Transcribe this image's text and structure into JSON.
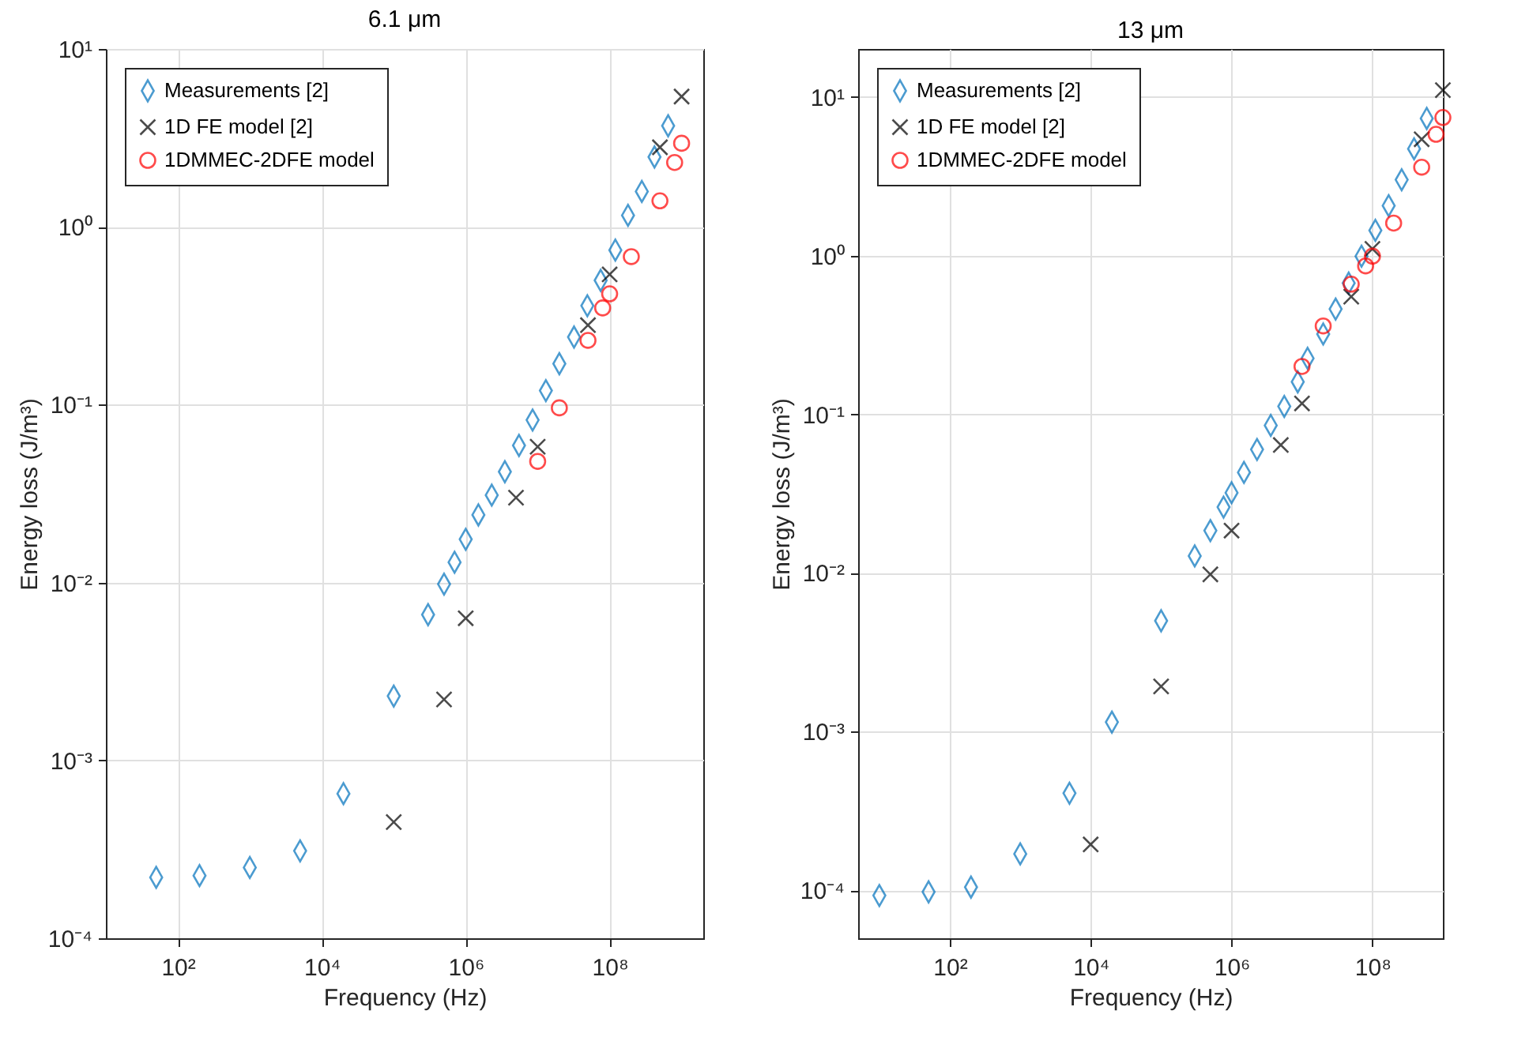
{
  "chart_data": [
    {
      "type": "scatter",
      "title": "6.1 μm",
      "xlabel": "Frequency (Hz)",
      "ylabel": "Energy loss (J/m³)",
      "log": "xy",
      "grid": true,
      "legend": "top left",
      "xlim": [
        10,
        2000000000
      ],
      "ylim": [
        0.0001,
        10
      ],
      "xticks": [
        {
          "value": 100,
          "label": "10²"
        },
        {
          "value": 10000,
          "label": "10⁴"
        },
        {
          "value": 1000000,
          "label": "10⁶"
        },
        {
          "value": 100000000,
          "label": "10⁸"
        }
      ],
      "yticks": [
        {
          "value": 0.0001,
          "label": "10⁻⁴"
        },
        {
          "value": 0.001,
          "label": "10⁻³"
        },
        {
          "value": 0.01,
          "label": "10⁻²"
        },
        {
          "value": 0.1,
          "label": "10⁻¹"
        },
        {
          "value": 1,
          "label": "10⁰"
        },
        {
          "value": 10,
          "label": "10¹"
        }
      ],
      "series": [
        {
          "name": "Measurements [2]",
          "color": "#0072bd",
          "marker": "diamond",
          "x": [
            50,
            200,
            1000,
            5000,
            20000,
            100000,
            300000,
            500000,
            700000,
            1000000,
            1500000,
            2300000,
            3500000,
            5500000,
            8500000,
            13000000,
            20000000,
            32000000,
            49000000,
            75000000,
            120000000,
            180000000,
            280000000,
            420000000,
            650000000
          ],
          "values": [
            0.00022,
            0.000225,
            0.00025,
            0.00031,
            0.00065,
            0.0023,
            0.0066,
            0.0098,
            0.013,
            0.0175,
            0.024,
            0.031,
            0.042,
            0.059,
            0.082,
            0.12,
            0.17,
            0.24,
            0.36,
            0.5,
            0.74,
            1.16,
            1.58,
            2.47,
            3.7
          ]
        },
        {
          "name": "1D FE model [2]",
          "color": "#000000",
          "marker": "cross",
          "x": [
            100000,
            500000,
            1000000,
            5000000,
            10000000,
            50000000,
            100000000,
            500000000,
            1000000000
          ],
          "values": [
            0.00045,
            0.0022,
            0.0063,
            0.03,
            0.058,
            0.28,
            0.54,
            2.8,
            5.4
          ]
        },
        {
          "name": "1DMMEC-2DFE model",
          "color": "#ff0000",
          "marker": "circle",
          "x": [
            10000000,
            20000000,
            50000000,
            80000000,
            100000000,
            200000000,
            500000000,
            800000000,
            1000000000
          ],
          "values": [
            0.048,
            0.096,
            0.23,
            0.35,
            0.42,
            0.68,
            1.4,
            2.3,
            2.95
          ]
        }
      ]
    },
    {
      "type": "scatter",
      "title": "13 μm",
      "xlabel": "Frequency (Hz)",
      "ylabel": "Energy loss (J/m³)",
      "log": "xy",
      "grid": true,
      "legend": "top left",
      "xlim": [
        5,
        1000000000
      ],
      "ylim": [
        5e-05,
        20
      ],
      "xticks": [
        {
          "value": 100,
          "label": "10²"
        },
        {
          "value": 10000,
          "label": "10⁴"
        },
        {
          "value": 1000000,
          "label": "10⁶"
        },
        {
          "value": 100000000,
          "label": "10⁸"
        }
      ],
      "yticks": [
        {
          "value": 0.0001,
          "label": "10⁻⁴"
        },
        {
          "value": 0.001,
          "label": "10⁻³"
        },
        {
          "value": 0.01,
          "label": "10⁻²"
        },
        {
          "value": 0.1,
          "label": "10⁻¹"
        },
        {
          "value": 1,
          "label": "10⁰"
        },
        {
          "value": 10,
          "label": "10¹"
        }
      ],
      "series": [
        {
          "name": "Measurements [2]",
          "color": "#0072bd",
          "marker": "diamond",
          "x": [
            10,
            50,
            200,
            1000,
            5000,
            20000,
            100000,
            300000,
            500000,
            770000,
            1000000,
            1500000,
            2300000,
            3600000,
            5600000,
            8700000,
            12000000,
            20000000,
            30000000,
            46000000,
            70000000,
            110000000,
            170000000,
            260000000,
            390000000,
            590000000
          ],
          "values": [
            9.3e-05,
            9.8e-05,
            0.000105,
            0.00017,
            0.00041,
            0.00115,
            0.005,
            0.0128,
            0.0185,
            0.026,
            0.032,
            0.043,
            0.06,
            0.085,
            0.112,
            0.16,
            0.225,
            0.32,
            0.46,
            0.67,
            0.99,
            1.44,
            2.06,
            3.0,
            4.7,
            7.3
          ]
        },
        {
          "name": "1D FE model [2]",
          "color": "#000000",
          "marker": "cross",
          "x": [
            10000,
            100000,
            500000,
            1000000,
            5000000,
            10000000,
            50000000,
            100000000,
            500000000,
            1000000000
          ],
          "values": [
            0.000195,
            0.00193,
            0.0098,
            0.0185,
            0.064,
            0.117,
            0.55,
            1.1,
            5.4,
            11
          ]
        },
        {
          "name": "1DMMEC-2DFE model",
          "color": "#ff0000",
          "marker": "circle",
          "x": [
            10000000,
            20000000,
            50000000,
            80000000,
            100000000,
            200000000,
            500000000,
            800000000,
            1000000000
          ],
          "values": [
            0.2,
            0.36,
            0.66,
            0.86,
            0.99,
            1.6,
            3.6,
            5.8,
            7.4
          ]
        }
      ]
    }
  ]
}
